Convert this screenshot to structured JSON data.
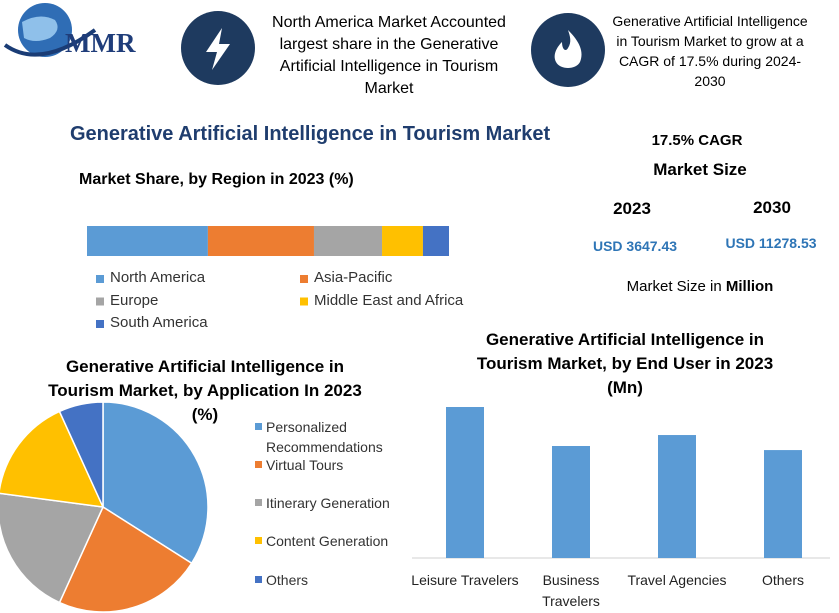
{
  "header": {
    "logo": "MMR",
    "share_note": "North America Market Accounted largest share in the Generative Artificial Intelligence in Tourism Market",
    "cagr_note": "Generative Artificial Intelligence in Tourism Market to grow at a CAGR of 17.5% during 2024-2030"
  },
  "title": "Generative Artificial Intelligence in Tourism Market",
  "market_size": {
    "cagr": "17.5% CAGR",
    "heading": "Market Size",
    "years": [
      "2023",
      "2030"
    ],
    "amounts": [
      "USD 3647.43",
      "USD 11278.53"
    ],
    "unit_prefix": "Market Size in",
    "unit": "Million"
  },
  "chart_data": [
    {
      "type": "stacked_bar",
      "title": "Market Share, by Region in 2023 (%)",
      "series": [
        {
          "name": "North America",
          "color": "#5b9bd5",
          "values": [
            33.4
          ]
        },
        {
          "name": "Asia-Pacific",
          "color": "#ed7d31",
          "values": [
            29.3
          ]
        },
        {
          "name": "Europe",
          "color": "#a5a5a5",
          "values": [
            18.8
          ]
        },
        {
          "name": "Middle East and Africa",
          "color": "#ffc000",
          "values": [
            11.3
          ]
        },
        {
          "name": "South America",
          "color": "#4472c4",
          "values": [
            7.2
          ]
        }
      ]
    },
    {
      "type": "pie",
      "title": "Generative Artificial Intelligence in Tourism Market, by Application In 2023 (%)",
      "categories": [
        "Personalized Recommendations",
        "Virtual Tours",
        "Itinerary Generation",
        "Content Generation",
        "Others"
      ],
      "values": [
        34,
        22.8,
        20.3,
        16.1,
        6.8
      ],
      "colors": [
        "#5b9bd5",
        "#ed7d31",
        "#a5a5a5",
        "#ffc000",
        "#4472c4"
      ]
    },
    {
      "type": "bar",
      "title": "Generative Artificial Intelligence in Tourism Market, by End User in 2023 (Mn)",
      "categories": [
        "Leisure Travelers",
        "Business Travelers",
        "Travel Agencies",
        "Others"
      ],
      "values": [
        1115,
        827,
        908,
        797
      ],
      "color": "#5b9bd5"
    }
  ]
}
